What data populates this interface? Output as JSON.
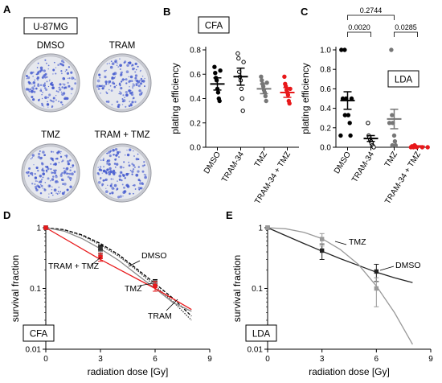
{
  "panel_labels": {
    "a": "A",
    "b": "B",
    "c": "C",
    "d": "D",
    "e": "E"
  },
  "panel_a": {
    "cell_line": "U-87MG",
    "dish_labels": [
      "DMSO",
      "TRAM",
      "TMZ",
      "TRAM + TMZ"
    ],
    "colony_color": "#4a5fd0",
    "dish_color": "#e6e8ee"
  },
  "chart_data": [
    {
      "id": "B",
      "type": "scatter",
      "box_label": "CFA",
      "title": "",
      "xlabel": "",
      "ylabel": "plating efficiency",
      "ylim": [
        0,
        0.8
      ],
      "yticks": [
        "0.0",
        "0.2",
        "0.4",
        "0.6",
        "0.8"
      ],
      "categories": [
        "DMSO",
        "TRAM-34",
        "TMZ",
        "TRAM-34 + TMZ"
      ],
      "colors": [
        "#000000",
        "#000000",
        "#777777",
        "#e8191b"
      ],
      "marker_fill": [
        "filled",
        "open",
        "filled",
        "filled"
      ],
      "means": [
        0.52,
        0.58,
        0.48,
        0.45
      ],
      "sem": [
        0.05,
        0.07,
        0.04,
        0.04
      ],
      "points": [
        [
          0.66,
          0.61,
          0.57,
          0.55,
          0.48,
          0.45,
          0.4,
          0.38,
          0.63
        ],
        [
          0.77,
          0.73,
          0.62,
          0.58,
          0.55,
          0.48,
          0.4,
          0.3,
          0.7
        ],
        [
          0.58,
          0.55,
          0.52,
          0.5,
          0.47,
          0.45,
          0.42,
          0.38,
          0.53
        ],
        [
          0.58,
          0.52,
          0.5,
          0.47,
          0.45,
          0.43,
          0.38,
          0.36,
          0.48
        ]
      ]
    },
    {
      "id": "C",
      "type": "scatter",
      "box_label": "LDA",
      "title": "",
      "xlabel": "",
      "ylabel": "plating efficiency",
      "ylim": [
        0,
        1.0
      ],
      "yticks": [
        "0.0",
        "0.2",
        "0.4",
        "0.6",
        "0.8",
        "1.0"
      ],
      "categories": [
        "DMSO",
        "TRAM-34",
        "TMZ",
        "TRAM-34 + TMZ"
      ],
      "colors": [
        "#000000",
        "#000000",
        "#777777",
        "#e8191b"
      ],
      "marker_fill": [
        "filled",
        "open",
        "filled",
        "filled"
      ],
      "means": [
        0.48,
        0.09,
        0.29,
        0.01
      ],
      "sem": [
        0.09,
        0.03,
        0.1,
        0.005
      ],
      "points": [
        [
          1.0,
          1.0,
          0.5,
          0.5,
          0.5,
          0.33,
          0.33,
          0.25,
          0.12,
          0.12
        ],
        [
          0.25,
          0.12,
          0.1,
          0.08,
          0.06,
          0.04,
          0.02,
          0.01,
          0.0
        ],
        [
          1.0,
          0.33,
          0.25,
          0.25,
          0.12,
          0.06,
          0.02,
          0.02
        ],
        [
          0.02,
          0.01,
          0.01,
          0.0,
          0.0,
          0.0,
          0.0,
          0.0
        ]
      ],
      "pvalues": [
        {
          "between": [
            0,
            1
          ],
          "label": "0.0020"
        },
        {
          "between": [
            2,
            3
          ],
          "label": "0.0285"
        },
        {
          "between": [
            0,
            2
          ],
          "label": "0.2744"
        }
      ]
    },
    {
      "id": "D",
      "type": "line",
      "box_label": "CFA",
      "title": "",
      "xlabel": "radiation dose [Gy]",
      "ylabel": "survival fraction",
      "xlim": [
        0,
        9
      ],
      "xticks": [
        0,
        3,
        6,
        9
      ],
      "ylog": true,
      "ylim": [
        0.01,
        1
      ],
      "yticks": [
        "0.01",
        "0.1",
        "1"
      ],
      "series": [
        {
          "name": "DMSO",
          "color": "#000000",
          "dash": "4,2",
          "x": [
            0,
            3,
            6
          ],
          "y": [
            1.0,
            0.47,
            0.13
          ],
          "err": [
            0,
            0.04,
            0.01
          ],
          "curve": [
            [
              0,
              1.0
            ],
            [
              1,
              0.93
            ],
            [
              2,
              0.76
            ],
            [
              3,
              0.55
            ],
            [
              4,
              0.36
            ],
            [
              5,
              0.21
            ],
            [
              6,
              0.12
            ],
            [
              7,
              0.068
            ],
            [
              8,
              0.035
            ]
          ]
        },
        {
          "name": "TRAM",
          "color": "#333333",
          "dash": "1.5,1.5",
          "x": [
            0,
            3,
            6
          ],
          "y": [
            1.0,
            0.45,
            0.12
          ],
          "err": [
            0,
            0.04,
            0.01
          ],
          "curve": [
            [
              0,
              1.0
            ],
            [
              1,
              0.92
            ],
            [
              2,
              0.74
            ],
            [
              3,
              0.52
            ],
            [
              4,
              0.34
            ],
            [
              5,
              0.2
            ],
            [
              6,
              0.11
            ],
            [
              7,
              0.06
            ],
            [
              8,
              0.03
            ]
          ]
        },
        {
          "name": "TMZ",
          "color": "#888888",
          "dash": "",
          "x": [
            0,
            3,
            6
          ],
          "y": [
            1.0,
            0.36,
            0.12
          ],
          "err": [
            0,
            0.05,
            0.015
          ],
          "curve": [
            [
              0,
              1.0
            ],
            [
              1,
              0.88
            ],
            [
              2,
              0.66
            ],
            [
              3,
              0.45
            ],
            [
              4,
              0.29
            ],
            [
              5,
              0.17
            ],
            [
              6,
              0.1
            ],
            [
              7,
              0.058
            ],
            [
              8,
              0.042
            ]
          ]
        },
        {
          "name": "TRAM + TMZ",
          "color": "#e8191b",
          "dash": "",
          "x": [
            0,
            3,
            6
          ],
          "y": [
            1.0,
            0.33,
            0.11
          ],
          "err": [
            0,
            0.05,
            0.02
          ],
          "curve": [
            [
              0,
              1.0
            ],
            [
              3,
              0.3
            ],
            [
              6,
              0.1
            ],
            [
              8,
              0.045
            ]
          ]
        }
      ]
    },
    {
      "id": "E",
      "type": "line",
      "box_label": "LDA",
      "title": "",
      "xlabel": "radiation dose [Gy]",
      "ylabel": "survival fraction",
      "xlim": [
        0,
        9
      ],
      "xticks": [
        0,
        3,
        6,
        9
      ],
      "ylog": true,
      "ylim": [
        0.01,
        1
      ],
      "yticks": [
        "0.01",
        "0.1",
        "1"
      ],
      "series": [
        {
          "name": "DMSO",
          "color": "#222222",
          "dash": "",
          "x": [
            0,
            3,
            6
          ],
          "y": [
            1.0,
            0.42,
            0.19
          ],
          "err": [
            0,
            0.12,
            0.06
          ],
          "curve": [
            [
              0,
              1.0
            ],
            [
              1,
              0.74
            ],
            [
              2,
              0.55
            ],
            [
              3,
              0.41
            ],
            [
              4,
              0.31
            ],
            [
              5,
              0.24
            ],
            [
              6,
              0.185
            ],
            [
              7,
              0.15
            ],
            [
              8,
              0.125
            ]
          ]
        },
        {
          "name": "TMZ",
          "color": "#999999",
          "dash": "",
          "x": [
            0,
            3,
            6
          ],
          "y": [
            1.0,
            0.65,
            0.1
          ],
          "err": [
            0,
            0.15,
            0.05
          ],
          "curve": [
            [
              0,
              1.0
            ],
            [
              1,
              0.96
            ],
            [
              2,
              0.84
            ],
            [
              3,
              0.66
            ],
            [
              4,
              0.44
            ],
            [
              5,
              0.25
            ],
            [
              6,
              0.11
            ],
            [
              7,
              0.04
            ],
            [
              8,
              0.012
            ]
          ]
        }
      ]
    }
  ]
}
